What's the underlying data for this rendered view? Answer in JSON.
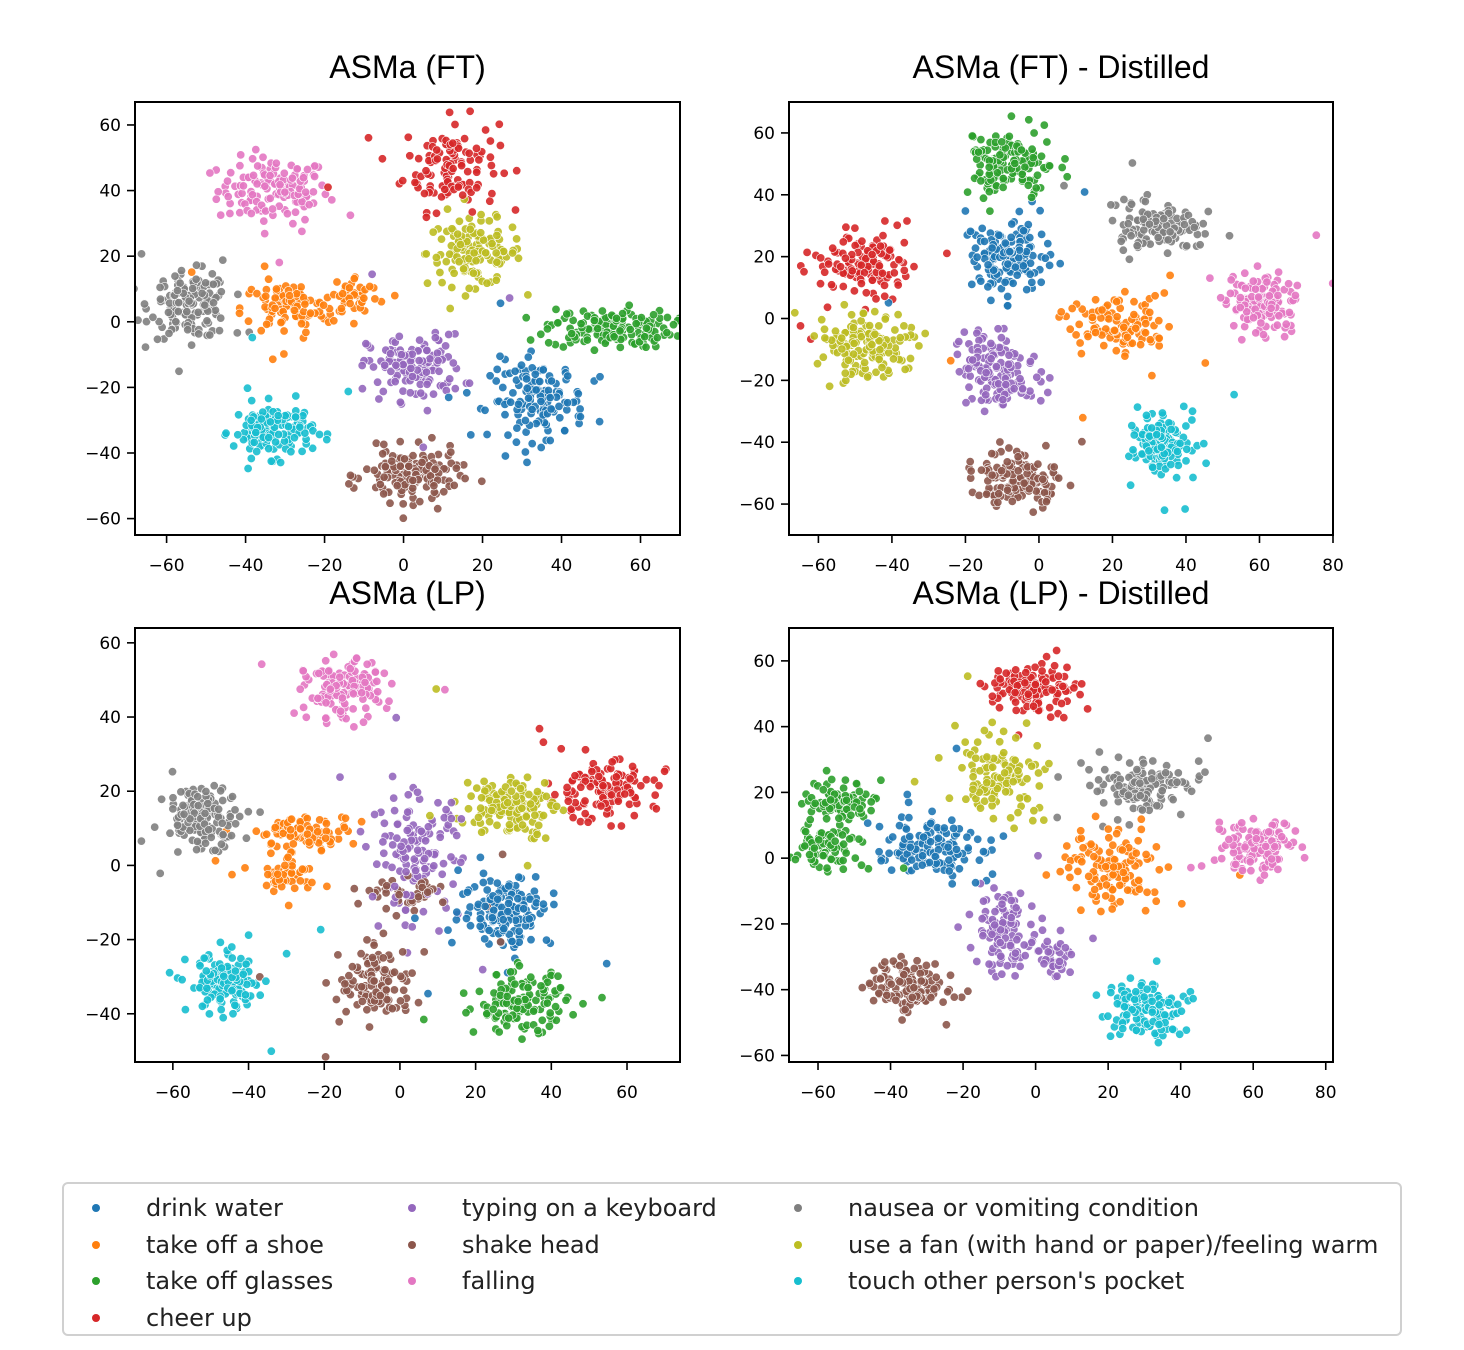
{
  "categories": [
    {
      "key": "dw",
      "label": "drink water",
      "color": "#1f77b4"
    },
    {
      "key": "ts",
      "label": "take off a shoe",
      "color": "#ff7f0e"
    },
    {
      "key": "tg",
      "label": "take off glasses",
      "color": "#2ca02c"
    },
    {
      "key": "cu",
      "label": "cheer up",
      "color": "#d62728"
    },
    {
      "key": "tk",
      "label": "typing on a keyboard",
      "color": "#9467bd"
    },
    {
      "key": "sh",
      "label": "shake head",
      "color": "#8c564b"
    },
    {
      "key": "fa",
      "label": "falling",
      "color": "#e377c2"
    },
    {
      "key": "nv",
      "label": "nausea or vomiting condition",
      "color": "#7f7f7f"
    },
    {
      "key": "uf",
      "label": "use a fan (with hand or paper)/feeling warm",
      "color": "#bcbd22"
    },
    {
      "key": "tp",
      "label": "touch other person's pocket",
      "color": "#17becf"
    }
  ],
  "chart_data": [
    {
      "type": "scatter",
      "title": "ASMa (FT)",
      "xlim": [
        -68,
        70
      ],
      "ylim": [
        -65,
        67
      ],
      "xticks": [
        -60,
        -40,
        -20,
        0,
        20,
        40,
        60
      ],
      "yticks": [
        -60,
        -40,
        -20,
        0,
        20,
        40,
        60
      ],
      "clusters": [
        {
          "cat": "fa",
          "cx": -33,
          "cy": 40,
          "sx": 7,
          "sy": 5,
          "n": 130
        },
        {
          "cat": "cu",
          "cx": 12,
          "cy": 48,
          "sx": 6,
          "sy": 7,
          "n": 120
        },
        {
          "cat": "uf",
          "cx": 18,
          "cy": 21,
          "sx": 6,
          "sy": 5,
          "n": 130
        },
        {
          "cat": "nv",
          "cx": -54,
          "cy": 5,
          "sx": 5,
          "sy": 5,
          "n": 140
        },
        {
          "cat": "ts",
          "cx": -29,
          "cy": 4,
          "sx": 6,
          "sy": 4,
          "n": 100
        },
        {
          "cat": "ts",
          "cx": -12,
          "cy": 8,
          "sx": 3,
          "sy": 3,
          "n": 40
        },
        {
          "cat": "tg",
          "cx": 52,
          "cy": -2,
          "sx": 8,
          "sy": 3,
          "n": 150
        },
        {
          "cat": "tk",
          "cx": 3,
          "cy": -14,
          "sx": 6,
          "sy": 5,
          "n": 130
        },
        {
          "cat": "dw",
          "cx": 34,
          "cy": -24,
          "sx": 6,
          "sy": 6,
          "n": 140
        },
        {
          "cat": "tp",
          "cx": -33,
          "cy": -33,
          "sx": 5,
          "sy": 4,
          "n": 140
        },
        {
          "cat": "sh",
          "cx": 2,
          "cy": -47,
          "sx": 6,
          "sy": 4,
          "n": 140
        }
      ]
    },
    {
      "type": "scatter",
      "title": "ASMa (FT) - Distilled",
      "xlim": [
        -68,
        80
      ],
      "ylim": [
        -70,
        70
      ],
      "xticks": [
        -60,
        -40,
        -20,
        0,
        20,
        40,
        60,
        80
      ],
      "yticks": [
        -60,
        -40,
        -20,
        0,
        20,
        40,
        60
      ],
      "clusters": [
        {
          "cat": "tg",
          "cx": -8,
          "cy": 50,
          "sx": 6,
          "sy": 6,
          "n": 140
        },
        {
          "cat": "dw",
          "cx": -8,
          "cy": 20,
          "sx": 6,
          "sy": 6,
          "n": 140
        },
        {
          "cat": "cu",
          "cx": -48,
          "cy": 17,
          "sx": 6,
          "sy": 5,
          "n": 130
        },
        {
          "cat": "uf",
          "cx": -47,
          "cy": -8,
          "sx": 7,
          "sy": 5,
          "n": 140
        },
        {
          "cat": "nv",
          "cx": 32,
          "cy": 29,
          "sx": 6,
          "sy": 4,
          "n": 120
        },
        {
          "cat": "ts",
          "cx": 23,
          "cy": -3,
          "sx": 7,
          "sy": 5,
          "n": 110
        },
        {
          "cat": "fa",
          "cx": 61,
          "cy": 5,
          "sx": 5,
          "sy": 5,
          "n": 130
        },
        {
          "cat": "tk",
          "cx": -11,
          "cy": -17,
          "sx": 5,
          "sy": 6,
          "n": 140
        },
        {
          "cat": "tp",
          "cx": 34,
          "cy": -40,
          "sx": 4,
          "sy": 5,
          "n": 140
        },
        {
          "cat": "sh",
          "cx": -6,
          "cy": -52,
          "sx": 6,
          "sy": 4,
          "n": 140
        }
      ]
    },
    {
      "type": "scatter",
      "title": "ASMa (LP)",
      "xlim": [
        -70,
        74
      ],
      "ylim": [
        -53,
        64
      ],
      "xticks": [
        -60,
        -40,
        -20,
        0,
        20,
        40,
        60
      ],
      "yticks": [
        -40,
        -20,
        0,
        20,
        40,
        60
      ],
      "clusters": [
        {
          "cat": "fa",
          "cx": -15,
          "cy": 47,
          "sx": 5,
          "sy": 4,
          "n": 130
        },
        {
          "cat": "nv",
          "cx": -52,
          "cy": 13,
          "sx": 5,
          "sy": 4,
          "n": 140
        },
        {
          "cat": "ts",
          "cx": -25,
          "cy": 9,
          "sx": 6,
          "sy": 2,
          "n": 80
        },
        {
          "cat": "ts",
          "cx": -30,
          "cy": -2,
          "sx": 3,
          "sy": 3,
          "n": 50
        },
        {
          "cat": "uf",
          "cx": 29,
          "cy": 16,
          "sx": 6,
          "sy": 4,
          "n": 130
        },
        {
          "cat": "cu",
          "cx": 53,
          "cy": 20,
          "sx": 7,
          "sy": 4,
          "n": 130
        },
        {
          "cat": "tk",
          "cx": 4,
          "cy": 3,
          "sx": 6,
          "sy": 8,
          "n": 130
        },
        {
          "cat": "dw",
          "cx": 28,
          "cy": -12,
          "sx": 6,
          "sy": 5,
          "n": 150
        },
        {
          "cat": "sh",
          "cx": -6,
          "cy": -32,
          "sx": 5,
          "sy": 5,
          "n": 120
        },
        {
          "cat": "sh",
          "cx": 3,
          "cy": -8,
          "sx": 5,
          "sy": 2,
          "n": 40
        },
        {
          "cat": "tg",
          "cx": 32,
          "cy": -37,
          "sx": 6,
          "sy": 4,
          "n": 140
        },
        {
          "cat": "tp",
          "cx": -46,
          "cy": -32,
          "sx": 5,
          "sy": 4,
          "n": 140
        }
      ]
    },
    {
      "type": "scatter",
      "title": "ASMa (LP) - Distilled",
      "xlim": [
        -68,
        82
      ],
      "ylim": [
        -62,
        70
      ],
      "xticks": [
        -60,
        -40,
        -20,
        0,
        20,
        40,
        60,
        80
      ],
      "yticks": [
        -60,
        -40,
        -20,
        0,
        20,
        40,
        60
      ],
      "clusters": [
        {
          "cat": "cu",
          "cx": -1,
          "cy": 52,
          "sx": 6,
          "sy": 4,
          "n": 120
        },
        {
          "cat": "uf",
          "cx": -10,
          "cy": 25,
          "sx": 6,
          "sy": 6,
          "n": 120
        },
        {
          "cat": "tg",
          "cx": -54,
          "cy": 18,
          "sx": 5,
          "sy": 3,
          "n": 80
        },
        {
          "cat": "tg",
          "cx": -57,
          "cy": 3,
          "sx": 4,
          "sy": 3,
          "n": 70
        },
        {
          "cat": "dw",
          "cx": -30,
          "cy": 3,
          "sx": 7,
          "sy": 5,
          "n": 130
        },
        {
          "cat": "nv",
          "cx": 30,
          "cy": 21,
          "sx": 6,
          "sy": 4,
          "n": 120
        },
        {
          "cat": "ts",
          "cx": 21,
          "cy": -3,
          "sx": 7,
          "sy": 6,
          "n": 120
        },
        {
          "cat": "fa",
          "cx": 62,
          "cy": 3,
          "sx": 5,
          "sy": 4,
          "n": 130
        },
        {
          "cat": "tk",
          "cx": -8,
          "cy": -22,
          "sx": 4,
          "sy": 6,
          "n": 110
        },
        {
          "cat": "tk",
          "cx": 6,
          "cy": -30,
          "sx": 2,
          "sy": 3,
          "n": 30
        },
        {
          "cat": "sh",
          "cx": -35,
          "cy": -39,
          "sx": 5,
          "sy": 4,
          "n": 130
        },
        {
          "cat": "tp",
          "cx": 30,
          "cy": -46,
          "sx": 5,
          "sy": 4,
          "n": 140
        }
      ]
    }
  ]
}
